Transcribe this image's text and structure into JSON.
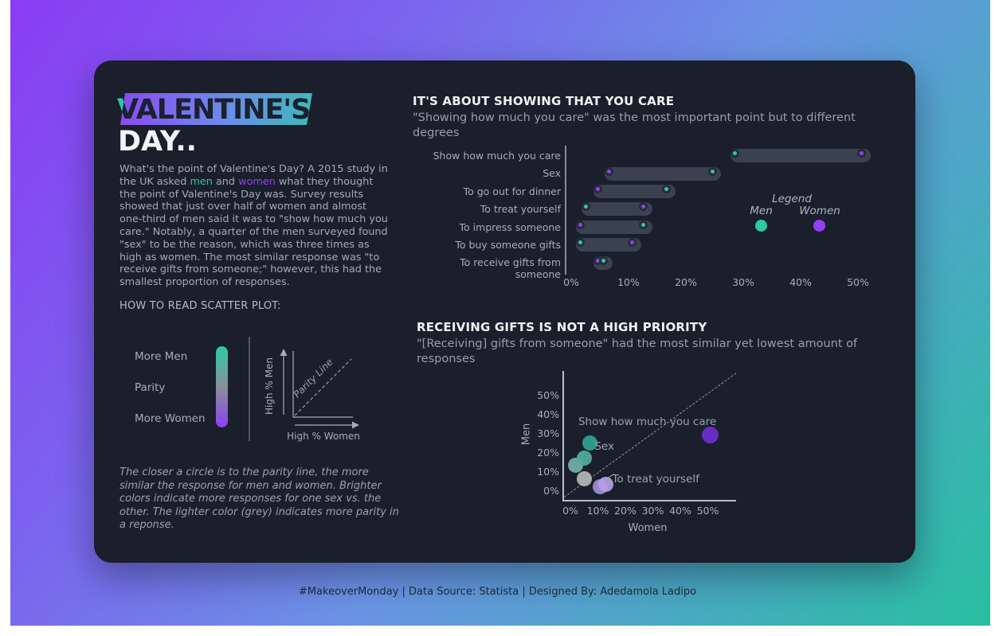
{
  "page": {
    "footer": "#MakeoverMonday | Data Source: Statista | Designed By: Adedamola Ladipo",
    "colors": {
      "men": "#2ec9a7",
      "women": "#9340f5",
      "card": "#1a1f2b",
      "gradient_start": "#8a3cf3",
      "gradient_mid": "#6b93e5",
      "gradient_end": "#28c0a0",
      "parity_gray": "#b2b8b6"
    }
  },
  "intro": {
    "title_line1": "VALENTINE'S",
    "title_line2": "DAY..",
    "p1": "What's the point of Valentine's Day? A 2015 study in the UK asked ",
    "men_word": "men",
    "p2": " and ",
    "women_word": "women",
    "p3": " what they thought the point of Valentine's Day was. Survey results showed that just over half of women and almost one-third of men said it was to \"show how much you care.\" Notably, a quarter of the men surveyed found \"sex\" to be the reason, which was three times as high as women. The most similar response was \"to receive gifts from someone;\" however, this had the smallest proportion of responses."
  },
  "howto": {
    "label": "HOW TO READ SCATTER PLOT:",
    "scale_labels": [
      "More Men",
      "Parity",
      "More Women"
    ],
    "axis_y": "High % Men",
    "axis_x": "High % Women",
    "parity_label": "Parity Line",
    "note": "The closer a circle is to the parity line, the more similar the response for men and women. Brighter colors indicate more responses for one sex vs. the other. The lighter color (grey) indicates more parity in a reponse."
  },
  "chart_data": [
    {
      "type": "dumbbell",
      "title": "IT'S ABOUT SHOWING THAT YOU CARE",
      "subtitle": "\"Showing how much you care\" was the most important point but to different degrees",
      "categories": [
        "Show how much you care",
        "Sex",
        "To go out for dinner",
        "To treat yourself",
        "To impress someone",
        "To buy someone gifts",
        "To receive gifts from someone"
      ],
      "series": [
        {
          "name": "Men",
          "values": [
            29,
            25,
            17,
            3,
            13,
            2,
            6
          ]
        },
        {
          "name": "Women",
          "values": [
            51,
            7,
            5,
            13,
            2,
            11,
            5
          ]
        }
      ],
      "x_ticks": [
        "0%",
        "10%",
        "20%",
        "30%",
        "40%",
        "50%"
      ],
      "xlim": [
        0,
        55
      ],
      "legend": {
        "title": "Legend",
        "men": "Men",
        "women": "Women"
      }
    },
    {
      "type": "scatter",
      "title": "RECEIVING GIFTS IS NOT A HIGH PRIORITY",
      "subtitle": "\"[Receiving] gifts from someone\" had the most similar yet lowest amount of responses",
      "xlabel": "Women",
      "ylabel": "Men",
      "x_ticks": [
        "0%",
        "10%",
        "20%",
        "30%",
        "40%",
        "50%"
      ],
      "y_ticks": [
        "0%",
        "10%",
        "20%",
        "30%",
        "40%",
        "50%"
      ],
      "xlim": [
        0,
        60
      ],
      "ylim": [
        0,
        55
      ],
      "points": [
        {
          "label": "To impress someone",
          "women": 2,
          "men": 13,
          "color": "#74b2a6"
        },
        {
          "label": "To go out for dinner",
          "women": 5,
          "men": 17,
          "color": "#52ad9e"
        },
        {
          "label": "Sex",
          "women": 7,
          "men": 25,
          "color": "#2fa492"
        },
        {
          "label": "To receive gifts from someone",
          "women": 5,
          "men": 6,
          "color": "#b2b8b6"
        },
        {
          "label": "To buy someone gifts",
          "women": 11,
          "men": 2,
          "color": "#a18fd6"
        },
        {
          "label": "To treat yourself",
          "women": 13,
          "men": 3,
          "color": "#b4a1e3"
        },
        {
          "label": "Show how much you care",
          "women": 51,
          "men": 29,
          "color": "#6e2fd6"
        }
      ],
      "annotations": [
        {
          "text": "Show how much you care",
          "x": 28,
          "y": 36,
          "anchor": "center"
        },
        {
          "text": "Sex",
          "x": 8.8,
          "y": 23,
          "anchor": "left"
        },
        {
          "text": "To treat yourself",
          "x": 15.2,
          "y": 5.8,
          "anchor": "left"
        }
      ]
    }
  ]
}
